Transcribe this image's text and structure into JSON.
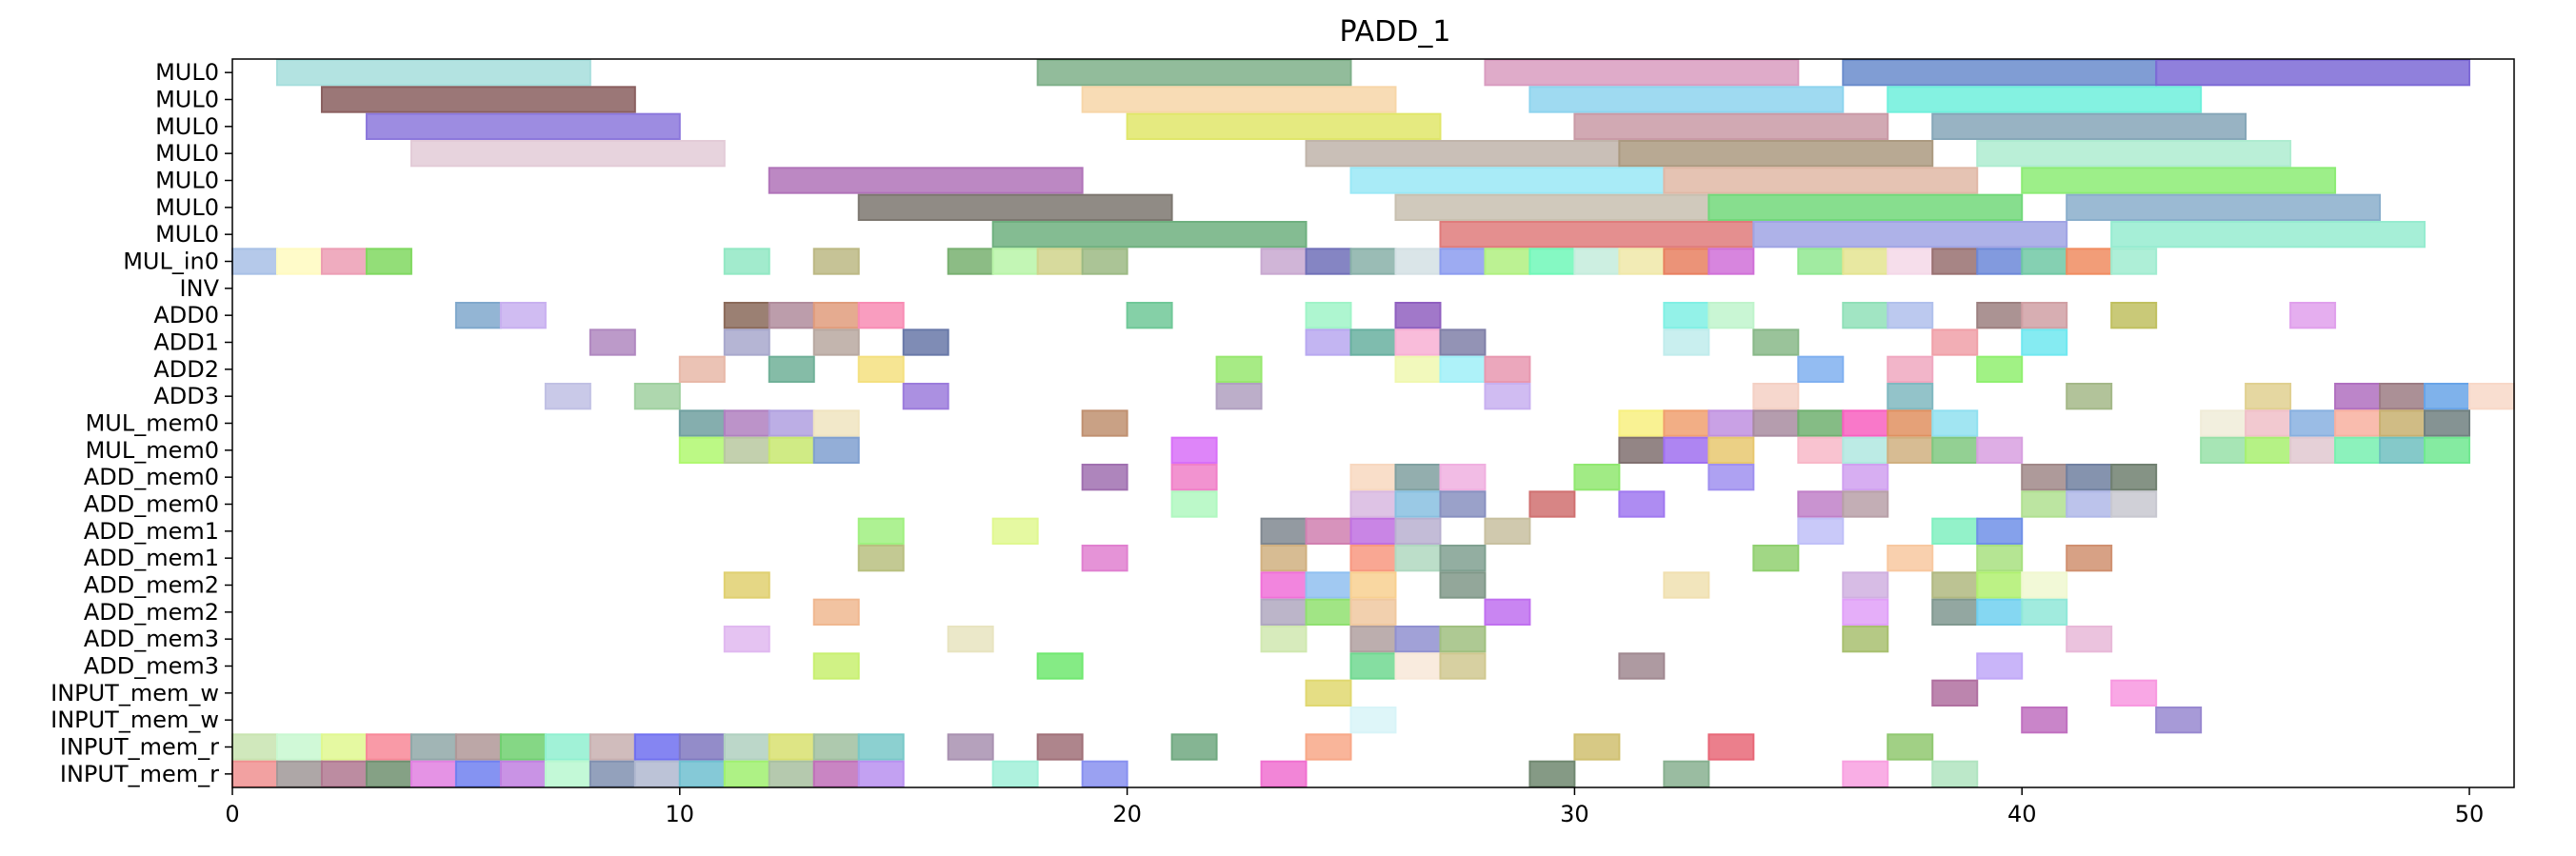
{
  "chart_data": {
    "type": "gantt",
    "title": "PADD_1",
    "xlim": [
      0,
      51
    ],
    "x_ticks": [
      0,
      10,
      20,
      30,
      40,
      50
    ],
    "rows": [
      "MUL0",
      "MUL0",
      "MUL0",
      "MUL0",
      "MUL0",
      "MUL0",
      "MUL0",
      "MUL_in0",
      "INV",
      "ADD0",
      "ADD1",
      "ADD2",
      "ADD3",
      "MUL_mem0",
      "MUL_mem0",
      "ADD_mem0",
      "ADD_mem0",
      "ADD_mem1",
      "ADD_mem1",
      "ADD_mem2",
      "ADD_mem2",
      "ADD_mem3",
      "ADD_mem3",
      "INPUT_mem_w",
      "INPUT_mem_w",
      "INPUT_mem_r",
      "INPUT_mem_r"
    ],
    "bars": [
      [
        0,
        1,
        7,
        "#a6dedc"
      ],
      [
        0,
        18,
        7,
        "#7fb08a"
      ],
      [
        0,
        28,
        7,
        "#d99cc0"
      ],
      [
        0,
        36,
        7,
        "#6a8ccc"
      ],
      [
        0,
        43,
        7,
        "#7d6ad6"
      ],
      [
        1,
        2,
        7,
        "#8a5f5f"
      ],
      [
        1,
        19,
        7,
        "#f7d6a8"
      ],
      [
        1,
        29,
        7,
        "#8ed4ee"
      ],
      [
        1,
        37,
        7,
        "#6ff0dc"
      ],
      [
        2,
        3,
        7,
        "#8c78dc"
      ],
      [
        2,
        20,
        7,
        "#e0e66a"
      ],
      [
        2,
        30,
        7,
        "#c99aa6"
      ],
      [
        2,
        38,
        7,
        "#86a6b8"
      ],
      [
        3,
        4,
        7,
        "#e3cbd7"
      ],
      [
        3,
        24,
        7,
        "#c0b4aa"
      ],
      [
        3,
        31,
        7,
        "#ab9a80"
      ],
      [
        3,
        39,
        7,
        "#aeecd0"
      ],
      [
        4,
        12,
        7,
        "#b073b9"
      ],
      [
        4,
        25,
        7,
        "#9ae8f6"
      ],
      [
        4,
        32,
        7,
        "#e0b8a6"
      ],
      [
        4,
        40,
        7,
        "#8cec74"
      ],
      [
        5,
        14,
        7,
        "#7d7770"
      ],
      [
        5,
        26,
        7,
        "#c8c0b0"
      ],
      [
        5,
        33,
        7,
        "#72d87a"
      ],
      [
        5,
        41,
        7,
        "#8aaecb"
      ],
      [
        6,
        17,
        7,
        "#6fb07f"
      ],
      [
        6,
        27,
        7,
        "#df7b7b"
      ],
      [
        6,
        34,
        7,
        "#a0a4e4"
      ],
      [
        6,
        42,
        7,
        "#96ecd0"
      ],
      [
        7,
        0,
        1,
        "#a8c0e6"
      ],
      [
        7,
        1,
        1,
        "#fffac0"
      ],
      [
        7,
        2,
        1,
        "#ec9eb4"
      ],
      [
        7,
        3,
        1,
        "#80d860"
      ],
      [
        7,
        11,
        1,
        "#92e8c4"
      ],
      [
        7,
        13,
        1,
        "#bcb884"
      ],
      [
        7,
        16,
        1,
        "#78b070"
      ],
      [
        7,
        17,
        1,
        "#b8f4a8"
      ],
      [
        7,
        18,
        1,
        "#d0d48c"
      ],
      [
        7,
        19,
        1,
        "#9cba84"
      ],
      [
        7,
        23,
        1,
        "#c8a8d0"
      ],
      [
        7,
        24,
        1,
        "#7070b8"
      ],
      [
        7,
        25,
        1,
        "#88b0a8"
      ],
      [
        7,
        26,
        1,
        "#d4e0e4"
      ],
      [
        7,
        27,
        1,
        "#8c9cf0"
      ],
      [
        7,
        28,
        1,
        "#b0f080"
      ],
      [
        7,
        29,
        1,
        "#70f8b8"
      ],
      [
        7,
        30,
        1,
        "#c4ecdc"
      ],
      [
        7,
        31,
        1,
        "#f0e8a8"
      ],
      [
        7,
        32,
        1,
        "#e88060"
      ],
      [
        7,
        33,
        1,
        "#d070d8"
      ],
      [
        7,
        35,
        1,
        "#90e890"
      ],
      [
        7,
        36,
        1,
        "#e4e490"
      ],
      [
        7,
        37,
        1,
        "#f4d8e8"
      ],
      [
        7,
        38,
        1,
        "#987070"
      ],
      [
        7,
        39,
        1,
        "#6c88d8"
      ],
      [
        7,
        40,
        1,
        "#70c8a4"
      ],
      [
        7,
        41,
        1,
        "#f08c60"
      ],
      [
        7,
        42,
        1,
        "#a0ecd0"
      ],
      [
        9,
        5,
        1,
        "#80a8cc"
      ],
      [
        9,
        6,
        1,
        "#c8b0f0"
      ],
      [
        9,
        11,
        1,
        "#8a6a5a"
      ],
      [
        9,
        12,
        1,
        "#b08c9c"
      ],
      [
        9,
        13,
        1,
        "#e09c7c"
      ],
      [
        9,
        14,
        1,
        "#f88cb4"
      ],
      [
        9,
        20,
        1,
        "#70c898"
      ],
      [
        9,
        24,
        1,
        "#a0f4c8"
      ],
      [
        9,
        26,
        1,
        "#9060c0"
      ],
      [
        9,
        32,
        1,
        "#80f0e4"
      ],
      [
        9,
        33,
        1,
        "#c0f4cc"
      ],
      [
        9,
        36,
        1,
        "#90e0b8"
      ],
      [
        9,
        37,
        1,
        "#b0c0ec"
      ],
      [
        9,
        39,
        1,
        "#9c8080"
      ],
      [
        9,
        40,
        1,
        "#d0a0a4"
      ],
      [
        9,
        42,
        1,
        "#c0c060"
      ],
      [
        9,
        46,
        1,
        "#e0a0ec"
      ],
      [
        10,
        8,
        1,
        "#b088c0"
      ],
      [
        10,
        11,
        1,
        "#a8a8cc"
      ],
      [
        10,
        13,
        1,
        "#b8a8a0"
      ],
      [
        10,
        15,
        1,
        "#6878a8"
      ],
      [
        10,
        24,
        1,
        "#b8a8f0"
      ],
      [
        10,
        25,
        1,
        "#68b0a0"
      ],
      [
        10,
        26,
        1,
        "#f8b0d4"
      ],
      [
        10,
        27,
        1,
        "#8080a8"
      ],
      [
        10,
        32,
        1,
        "#c0ecec"
      ],
      [
        10,
        34,
        1,
        "#88b888"
      ],
      [
        10,
        38,
        1,
        "#f0a0a8"
      ],
      [
        10,
        40,
        1,
        "#70e8f0"
      ],
      [
        11,
        10,
        1,
        "#e8b8a8"
      ],
      [
        11,
        12,
        1,
        "#70b098"
      ],
      [
        11,
        14,
        1,
        "#f4e080"
      ],
      [
        11,
        22,
        1,
        "#98e870"
      ],
      [
        11,
        26,
        1,
        "#f0f8b0"
      ],
      [
        11,
        27,
        1,
        "#a0f0f8"
      ],
      [
        11,
        28,
        1,
        "#e898b0"
      ],
      [
        11,
        35,
        1,
        "#80b0f0"
      ],
      [
        11,
        37,
        1,
        "#f0a8c0"
      ],
      [
        11,
        39,
        1,
        "#90f070"
      ],
      [
        12,
        7,
        1,
        "#c0c0e4"
      ],
      [
        12,
        9,
        1,
        "#a0d0a0"
      ],
      [
        12,
        15,
        1,
        "#9c7cdc"
      ],
      [
        12,
        22,
        1,
        "#b0a0c0"
      ],
      [
        12,
        28,
        1,
        "#c8b0f0"
      ],
      [
        12,
        34,
        1,
        "#f4d0c4"
      ],
      [
        12,
        37,
        1,
        "#80b8c0"
      ],
      [
        12,
        41,
        1,
        "#a4b888"
      ],
      [
        12,
        45,
        1,
        "#e0d090"
      ],
      [
        12,
        47,
        1,
        "#b070c0"
      ],
      [
        12,
        48,
        1,
        "#9c7c84"
      ],
      [
        12,
        49,
        1,
        "#68a4e8"
      ],
      [
        12,
        50,
        1,
        "#f8d8c8"
      ],
      [
        13,
        10,
        1,
        "#70a0a0"
      ],
      [
        13,
        11,
        1,
        "#b080c0"
      ],
      [
        13,
        12,
        1,
        "#b0a0e0"
      ],
      [
        13,
        13,
        1,
        "#f0e4c0"
      ],
      [
        13,
        19,
        1,
        "#c09070"
      ],
      [
        13,
        31,
        1,
        "#f8f080"
      ],
      [
        13,
        32,
        1,
        "#f0a070"
      ],
      [
        13,
        33,
        1,
        "#c090e0"
      ],
      [
        13,
        34,
        1,
        "#a88ca0"
      ],
      [
        13,
        35,
        1,
        "#70b070"
      ],
      [
        13,
        36,
        1,
        "#f860c0"
      ],
      [
        13,
        37,
        1,
        "#e09060"
      ],
      [
        13,
        38,
        1,
        "#90e0f0"
      ],
      [
        13,
        44,
        1,
        "#f0ecd8"
      ],
      [
        13,
        45,
        1,
        "#f0c0c8"
      ],
      [
        13,
        46,
        1,
        "#88b0e0"
      ],
      [
        13,
        47,
        1,
        "#f8b0a0"
      ],
      [
        13,
        48,
        1,
        "#c8b070"
      ],
      [
        13,
        49,
        1,
        "#708080"
      ],
      [
        14,
        10,
        1,
        "#b0f870"
      ],
      [
        14,
        11,
        1,
        "#b8c8a0"
      ],
      [
        14,
        12,
        1,
        "#c8e870"
      ],
      [
        14,
        13,
        1,
        "#80a0d0"
      ],
      [
        14,
        21,
        1,
        "#d870f8"
      ],
      [
        14,
        31,
        1,
        "#807070"
      ],
      [
        14,
        32,
        1,
        "#a070f0"
      ],
      [
        14,
        33,
        1,
        "#e8c870"
      ],
      [
        14,
        35,
        1,
        "#f8b8c8"
      ],
      [
        14,
        36,
        1,
        "#b0e8e0"
      ],
      [
        14,
        37,
        1,
        "#d0b080"
      ],
      [
        14,
        38,
        1,
        "#80c880"
      ],
      [
        14,
        39,
        1,
        "#d8a0e0"
      ],
      [
        14,
        44,
        1,
        "#98e0a8"
      ],
      [
        14,
        45,
        1,
        "#a8f070"
      ],
      [
        14,
        46,
        1,
        "#e0c8d0"
      ],
      [
        14,
        47,
        1,
        "#78f0b0"
      ],
      [
        14,
        48,
        1,
        "#70c0c0"
      ],
      [
        14,
        49,
        1,
        "#70e890"
      ],
      [
        15,
        19,
        1,
        "#a070b0"
      ],
      [
        15,
        21,
        1,
        "#f080c8"
      ],
      [
        15,
        25,
        1,
        "#f8d8c0"
      ],
      [
        15,
        26,
        1,
        "#80a0a0"
      ],
      [
        15,
        27,
        1,
        "#f0b0e0"
      ],
      [
        15,
        30,
        1,
        "#90e870"
      ],
      [
        15,
        33,
        1,
        "#a090f0"
      ],
      [
        15,
        36,
        1,
        "#d0a0f0"
      ],
      [
        15,
        40,
        1,
        "#a08888"
      ],
      [
        15,
        41,
        1,
        "#7080a0"
      ],
      [
        15,
        42,
        1,
        "#708070"
      ],
      [
        16,
        21,
        1,
        "#b0f8c0"
      ],
      [
        16,
        25,
        1,
        "#d8b8e0"
      ],
      [
        16,
        26,
        1,
        "#88c0e0"
      ],
      [
        16,
        27,
        1,
        "#8890c0"
      ],
      [
        16,
        29,
        1,
        "#d07070"
      ],
      [
        16,
        31,
        1,
        "#a078f0"
      ],
      [
        16,
        35,
        1,
        "#c080c8"
      ],
      [
        16,
        36,
        1,
        "#b8a0a8"
      ],
      [
        16,
        40,
        1,
        "#b0e090"
      ],
      [
        16,
        41,
        1,
        "#b0b8e8"
      ],
      [
        16,
        42,
        1,
        "#c8c8d0"
      ],
      [
        17,
        14,
        1,
        "#a0f080"
      ],
      [
        17,
        17,
        1,
        "#e0f890"
      ],
      [
        17,
        23,
        1,
        "#808890"
      ],
      [
        17,
        24,
        1,
        "#d080b0"
      ],
      [
        17,
        25,
        1,
        "#c070e0"
      ],
      [
        17,
        26,
        1,
        "#b8b0d0"
      ],
      [
        17,
        28,
        1,
        "#c8c0a0"
      ],
      [
        17,
        35,
        1,
        "#c0c0f8"
      ],
      [
        17,
        38,
        1,
        "#80f0c0"
      ],
      [
        17,
        39,
        1,
        "#7090e8"
      ],
      [
        18,
        14,
        1,
        "#b8c080"
      ],
      [
        18,
        19,
        1,
        "#e080d0"
      ],
      [
        18,
        23,
        1,
        "#d0b080"
      ],
      [
        18,
        25,
        1,
        "#f89880"
      ],
      [
        18,
        26,
        1,
        "#b0d8c0"
      ],
      [
        18,
        27,
        1,
        "#80a090"
      ],
      [
        18,
        34,
        1,
        "#90d070"
      ],
      [
        18,
        37,
        1,
        "#f8c8a0"
      ],
      [
        18,
        39,
        1,
        "#a8e080"
      ],
      [
        18,
        41,
        1,
        "#d09070"
      ],
      [
        19,
        11,
        1,
        "#e0d070"
      ],
      [
        19,
        23,
        1,
        "#f070d8"
      ],
      [
        19,
        24,
        1,
        "#90c0f0"
      ],
      [
        19,
        25,
        1,
        "#f8d090"
      ],
      [
        19,
        27,
        1,
        "#809888"
      ],
      [
        19,
        32,
        1,
        "#f0e0b0"
      ],
      [
        19,
        36,
        1,
        "#d0b0e0"
      ],
      [
        19,
        38,
        1,
        "#b0b880"
      ],
      [
        19,
        39,
        1,
        "#b0f070"
      ],
      [
        19,
        40,
        1,
        "#f0f8d0"
      ],
      [
        20,
        13,
        1,
        "#f0b890"
      ],
      [
        20,
        23,
        1,
        "#b0a8c0"
      ],
      [
        20,
        24,
        1,
        "#90e070"
      ],
      [
        20,
        25,
        1,
        "#f0c8a0"
      ],
      [
        20,
        28,
        1,
        "#c070f0"
      ],
      [
        20,
        36,
        1,
        "#e0a0f8"
      ],
      [
        20,
        38,
        1,
        "#809890"
      ],
      [
        20,
        39,
        1,
        "#70d0f0"
      ],
      [
        20,
        40,
        1,
        "#90e8d8"
      ],
      [
        21,
        11,
        1,
        "#e0b8f0"
      ],
      [
        21,
        16,
        1,
        "#e8e4c0"
      ],
      [
        21,
        23,
        1,
        "#d0e8b0"
      ],
      [
        21,
        25,
        1,
        "#b0a0a0"
      ],
      [
        21,
        26,
        1,
        "#9090d0"
      ],
      [
        21,
        27,
        1,
        "#a0c080"
      ],
      [
        21,
        36,
        1,
        "#a8c070"
      ],
      [
        21,
        41,
        1,
        "#e8b8d8"
      ],
      [
        22,
        13,
        1,
        "#c8f070"
      ],
      [
        22,
        18,
        1,
        "#70e870"
      ],
      [
        22,
        25,
        1,
        "#70d890"
      ],
      [
        22,
        26,
        1,
        "#f8e8d8"
      ],
      [
        22,
        27,
        1,
        "#d0c890"
      ],
      [
        22,
        31,
        1,
        "#a08890"
      ],
      [
        22,
        39,
        1,
        "#c0a8f8"
      ],
      [
        23,
        24,
        1,
        "#e0d870"
      ],
      [
        23,
        38,
        1,
        "#b070a0"
      ],
      [
        23,
        42,
        1,
        "#f898e0"
      ],
      [
        24,
        25,
        1,
        "#d8f4f8"
      ],
      [
        24,
        40,
        1,
        "#c070c0"
      ],
      [
        24,
        43,
        1,
        "#9888d0"
      ],
      [
        25,
        0,
        1,
        "#c8e4b0"
      ],
      [
        25,
        1,
        1,
        "#c8f8d0"
      ],
      [
        25,
        2,
        1,
        "#e0f890"
      ],
      [
        25,
        3,
        1,
        "#f88898"
      ],
      [
        25,
        4,
        1,
        "#90a8a8"
      ],
      [
        25,
        5,
        1,
        "#b09898"
      ],
      [
        25,
        6,
        1,
        "#70d070"
      ],
      [
        25,
        7,
        1,
        "#90f0d0"
      ],
      [
        25,
        8,
        1,
        "#c8b0b0"
      ],
      [
        25,
        9,
        1,
        "#7070f0"
      ],
      [
        25,
        10,
        1,
        "#8078c0"
      ],
      [
        25,
        11,
        1,
        "#b0d0c0"
      ],
      [
        25,
        12,
        1,
        "#d8e070"
      ],
      [
        25,
        13,
        1,
        "#a0c0a0"
      ],
      [
        25,
        14,
        1,
        "#78c8c8"
      ],
      [
        25,
        16,
        1,
        "#a890b0"
      ],
      [
        25,
        18,
        1,
        "#a07078"
      ],
      [
        25,
        21,
        1,
        "#70a880"
      ],
      [
        25,
        24,
        1,
        "#f8a888"
      ],
      [
        25,
        30,
        1,
        "#d0c070"
      ],
      [
        25,
        33,
        1,
        "#e86878"
      ],
      [
        25,
        37,
        1,
        "#90c870"
      ],
      [
        26,
        0,
        1,
        "#f09090"
      ],
      [
        26,
        1,
        1,
        "#a09898"
      ],
      [
        26,
        2,
        1,
        "#b07890"
      ],
      [
        26,
        3,
        1,
        "#709070"
      ],
      [
        26,
        4,
        1,
        "#e080e0"
      ],
      [
        26,
        5,
        1,
        "#7080f0"
      ],
      [
        26,
        6,
        1,
        "#c080e0"
      ],
      [
        26,
        7,
        1,
        "#b8f8d0"
      ],
      [
        26,
        8,
        1,
        "#8090b0"
      ],
      [
        26,
        9,
        1,
        "#b0b8d0"
      ],
      [
        26,
        10,
        1,
        "#70c0d0"
      ],
      [
        26,
        11,
        1,
        "#a0f070"
      ],
      [
        26,
        12,
        1,
        "#a8c0a0"
      ],
      [
        26,
        13,
        1,
        "#c070b8"
      ],
      [
        26,
        14,
        1,
        "#b890f0"
      ],
      [
        26,
        17,
        1,
        "#a0f0d8"
      ],
      [
        26,
        19,
        1,
        "#8890f0"
      ],
      [
        26,
        23,
        1,
        "#f070d0"
      ],
      [
        26,
        29,
        1,
        "#708870"
      ],
      [
        26,
        32,
        1,
        "#88b090"
      ],
      [
        26,
        36,
        1,
        "#f8a0e0"
      ],
      [
        26,
        38,
        1,
        "#b0e4c0"
      ]
    ]
  }
}
